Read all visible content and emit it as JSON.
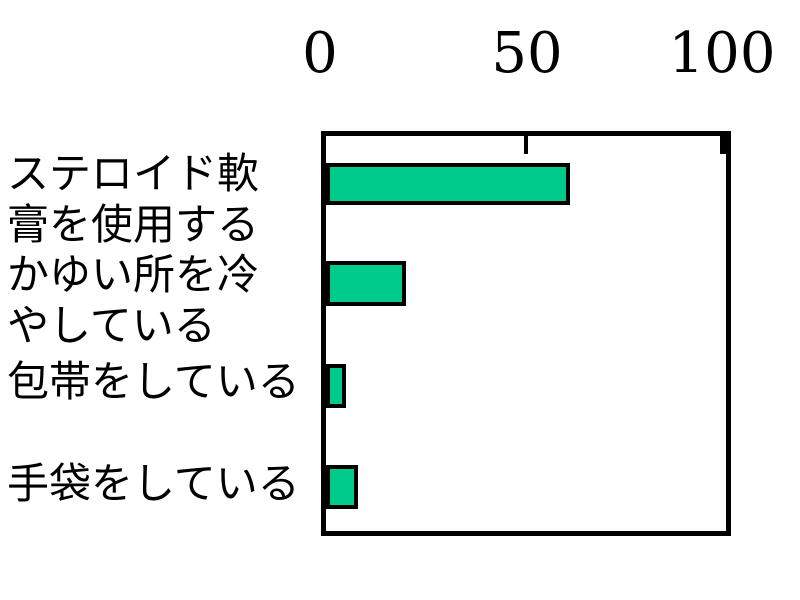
{
  "chart_data": {
    "type": "bar",
    "orientation": "horizontal",
    "title": "",
    "xlabel": "",
    "ylabel": "",
    "categories": [
      "ステロイド軟膏を使用する",
      "かゆい所を冷やしている",
      "包帯をしている",
      "手袋をしている"
    ],
    "values": [
      61,
      20,
      5,
      8
    ],
    "xlim": [
      0,
      100
    ],
    "x_tick_values": [
      0,
      50,
      100
    ],
    "x_tick_labels": [
      "0",
      "50",
      "100"
    ],
    "x_axis_position": "top",
    "grid": false,
    "legend": false,
    "bar_fill_color": "#00CB8C",
    "bar_border_color": "#000000",
    "frame_color": "#000000",
    "background_color": "#FFFFFF",
    "category_label_lines": [
      "ステロイド軟",
      "膏を使用する",
      "かゆい所を冷",
      "やしている",
      "包帯をしている",
      "手袋をしている"
    ]
  }
}
